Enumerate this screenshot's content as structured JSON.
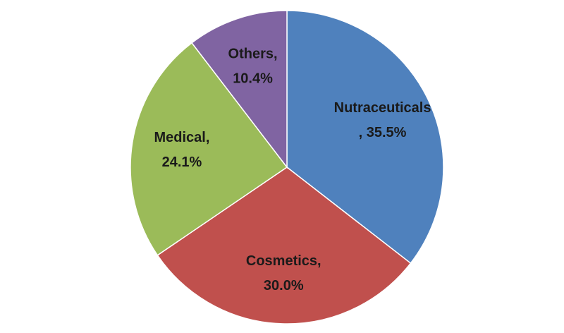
{
  "chart_data": {
    "type": "pie",
    "categories": [
      "Nutraceuticals",
      "Cosmetics,",
      "Medical,",
      "Others,"
    ],
    "values": [
      35.5,
      30.0,
      24.1,
      10.4
    ],
    "value_labels": [
      ", 35.5%",
      "30.0%",
      "24.1%",
      "10.4%"
    ],
    "colors": [
      "#4f81bd",
      "#c0504d",
      "#9bbb59",
      "#8064a2"
    ]
  }
}
